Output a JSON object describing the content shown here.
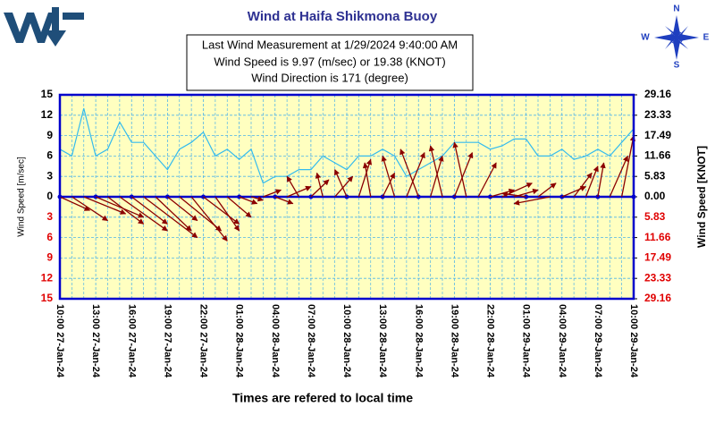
{
  "chart_data": {
    "type": "line",
    "title": "Wind at Haifa  Shikmona Buoy",
    "info": [
      "Last Wind Measurement at 1/29/2024  9:40:00  AM",
      "Wind Speed is 9.97 (m/sec) or 19.38  (KNOT)",
      "Wind Direction is 171 (degree)"
    ],
    "compass": [
      "N",
      "E",
      "S",
      "W"
    ],
    "ylabel": "Wind Speed [m/sec]",
    "y2label": "Wind Speed [KNOT]",
    "xlabel": "Times are refered to local time",
    "xlim": [
      0,
      48
    ],
    "xticks": [
      {
        "value": 0,
        "label": "10:00  27-Jan-24"
      },
      {
        "value": 3,
        "label": "13:00  27-Jan-24"
      },
      {
        "value": 6,
        "label": "16:00  27-Jan-24"
      },
      {
        "value": 9,
        "label": "19:00  27-Jan-24"
      },
      {
        "value": 12,
        "label": "22:00  27-Jan-24"
      },
      {
        "value": 15,
        "label": "01:00  28-Jan-24"
      },
      {
        "value": 18,
        "label": "04:00  28-Jan-24"
      },
      {
        "value": 21,
        "label": "07:00  28-Jan-24"
      },
      {
        "value": 24,
        "label": "10:00  28-Jan-24"
      },
      {
        "value": 27,
        "label": "13:00  28-Jan-24"
      },
      {
        "value": 30,
        "label": "16:00  28-Jan-24"
      },
      {
        "value": 33,
        "label": "19:00  28-Jan-24"
      },
      {
        "value": 36,
        "label": "22:00  28-Jan-24"
      },
      {
        "value": 39,
        "label": "01:00  29-Jan-24"
      },
      {
        "value": 42,
        "label": "04:00  29-Jan-24"
      },
      {
        "value": 45,
        "label": "07:00  29-Jan-24"
      },
      {
        "value": 48,
        "label": "10:00  29-Jan-24"
      }
    ],
    "ylim": [
      -15,
      15
    ],
    "yticks": [
      15,
      12,
      9,
      6,
      3,
      0,
      {
        "value": -3,
        "label": "3"
      },
      {
        "value": -6,
        "label": "6"
      },
      {
        "value": -9,
        "label": "9"
      },
      {
        "value": -12,
        "label": "12"
      },
      {
        "value": -15,
        "label": "15"
      }
    ],
    "y2lim": [
      -29.16,
      29.16
    ],
    "y2ticks": [
      29.16,
      23.33,
      17.49,
      11.66,
      5.83,
      {
        "value": 0,
        "label": "0.00"
      },
      {
        "value": -5.83,
        "label": "5.83"
      },
      {
        "value": -11.66,
        "label": "11.66"
      },
      {
        "value": -17.49,
        "label": "17.49"
      },
      {
        "value": -23.33,
        "label": "23.33"
      },
      {
        "value": -29.16,
        "label": "29.16"
      }
    ],
    "grid": true,
    "x": [
      0,
      1,
      2,
      3,
      4,
      5,
      6,
      7,
      8,
      9,
      10,
      11,
      12,
      13,
      14,
      15,
      16,
      17,
      18,
      19,
      20,
      21,
      22,
      23,
      24,
      25,
      26,
      27,
      28,
      29,
      30,
      31,
      32,
      33,
      34,
      35,
      36,
      37,
      38,
      39,
      40,
      41,
      42,
      43,
      44,
      45,
      46,
      47,
      48
    ],
    "series": [
      {
        "color": "#33bbee",
        "values": [
          7,
          6,
          13,
          6,
          7,
          11,
          8,
          8,
          6,
          4,
          7,
          8,
          9.5,
          6,
          7,
          5.5,
          7,
          2,
          3,
          3,
          4,
          4,
          6,
          5,
          4,
          6,
          6,
          7,
          6,
          3,
          4,
          5,
          6,
          8,
          8,
          8,
          7,
          7.5,
          8.5,
          8.5,
          6,
          6,
          7,
          5.5,
          6,
          7,
          6,
          8,
          10
        ]
      }
    ],
    "arrows": {
      "color": "#8b0000",
      "x": [
        0,
        1,
        2,
        3,
        4,
        5,
        6,
        7,
        8,
        9,
        10,
        11,
        12,
        13,
        14,
        15,
        16,
        17,
        18,
        19,
        20,
        21,
        22,
        23,
        24,
        25,
        26,
        27,
        28,
        29,
        30,
        31,
        32,
        33,
        34,
        35,
        36,
        37,
        38,
        39,
        40,
        41,
        42,
        43,
        44,
        45,
        46,
        47
      ],
      "dx": [
        2.5,
        3,
        3.5,
        4,
        3,
        4,
        3,
        4.5,
        3,
        2.5,
        3.5,
        3,
        3,
        2,
        2,
        1.5,
        1,
        1.5,
        1.5,
        2,
        -1,
        1.5,
        -0.5,
        1.5,
        -1,
        1,
        -0.5,
        1,
        -1,
        1.5,
        -1.5,
        1,
        -1,
        1.5,
        -1,
        1.5,
        2,
        2.5,
        2,
        -2,
        1.5,
        -3,
        2,
        1.5,
        1,
        0.5,
        1.5,
        1
      ],
      "dy": [
        -2,
        -3.5,
        -2.5,
        -3,
        -4,
        -5,
        -4,
        -6,
        -5,
        -3.5,
        -5,
        -6.5,
        -4,
        -5,
        -3,
        -1,
        -0.5,
        1,
        -1,
        1.5,
        3,
        2.5,
        3.5,
        3,
        4,
        5.5,
        5,
        3.5,
        6,
        6.5,
        7,
        6,
        7.5,
        6.5,
        8,
        5,
        1,
        2,
        1,
        0.5,
        2,
        -1,
        1.5,
        3.5,
        4.5,
        5,
        6,
        9
      ]
    }
  }
}
